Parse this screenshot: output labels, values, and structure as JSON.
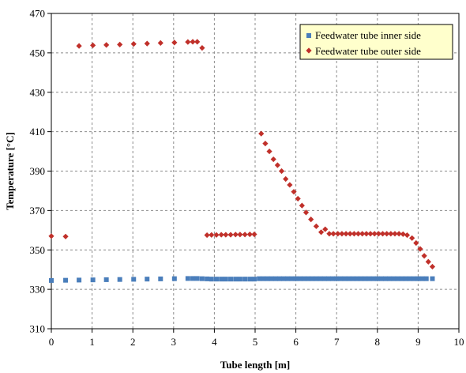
{
  "chart_data": {
    "type": "scatter",
    "xlabel": "Tube length [m]",
    "ylabel": "Temperature [°C]",
    "xlim": [
      0,
      10
    ],
    "ylim": [
      310,
      470
    ],
    "x_ticks": [
      "0",
      "1",
      "2",
      "3",
      "4",
      "5",
      "6",
      "7",
      "8",
      "9",
      "10"
    ],
    "y_ticks": [
      "310",
      "330",
      "350",
      "370",
      "390",
      "410",
      "430",
      "450",
      "470"
    ],
    "grid": "dashed",
    "legend_position": "top-right",
    "series": [
      {
        "name": "Feedwater tube inner side",
        "marker": "square",
        "color": "#4A7EBB",
        "points": [
          [
            0.0,
            334.5
          ],
          [
            0.35,
            334.6
          ],
          [
            0.68,
            334.7
          ],
          [
            1.02,
            334.8
          ],
          [
            1.35,
            334.9
          ],
          [
            1.68,
            335.0
          ],
          [
            2.02,
            335.1
          ],
          [
            2.35,
            335.2
          ],
          [
            2.68,
            335.3
          ],
          [
            3.02,
            335.4
          ],
          [
            3.35,
            335.5
          ],
          [
            3.47,
            335.5
          ],
          [
            3.58,
            335.5
          ],
          [
            3.7,
            335.4
          ],
          [
            3.82,
            335.3
          ],
          [
            3.93,
            335.2
          ],
          [
            4.05,
            335.2
          ],
          [
            4.17,
            335.2
          ],
          [
            4.28,
            335.2
          ],
          [
            4.4,
            335.2
          ],
          [
            4.52,
            335.2
          ],
          [
            4.63,
            335.2
          ],
          [
            4.75,
            335.2
          ],
          [
            4.87,
            335.2
          ],
          [
            4.98,
            335.2
          ],
          [
            5.1,
            335.4
          ],
          [
            5.2,
            335.4
          ],
          [
            5.3,
            335.4
          ],
          [
            5.4,
            335.4
          ],
          [
            5.5,
            335.4
          ],
          [
            5.6,
            335.4
          ],
          [
            5.7,
            335.4
          ],
          [
            5.8,
            335.4
          ],
          [
            5.9,
            335.4
          ],
          [
            6.0,
            335.4
          ],
          [
            6.1,
            335.4
          ],
          [
            6.2,
            335.4
          ],
          [
            6.3,
            335.4
          ],
          [
            6.4,
            335.4
          ],
          [
            6.5,
            335.4
          ],
          [
            6.6,
            335.4
          ],
          [
            6.7,
            335.4
          ],
          [
            6.8,
            335.4
          ],
          [
            6.9,
            335.4
          ],
          [
            7.0,
            335.4
          ],
          [
            7.1,
            335.4
          ],
          [
            7.2,
            335.4
          ],
          [
            7.3,
            335.4
          ],
          [
            7.4,
            335.4
          ],
          [
            7.5,
            335.4
          ],
          [
            7.6,
            335.4
          ],
          [
            7.7,
            335.4
          ],
          [
            7.8,
            335.4
          ],
          [
            7.9,
            335.4
          ],
          [
            8.0,
            335.4
          ],
          [
            8.1,
            335.4
          ],
          [
            8.2,
            335.4
          ],
          [
            8.3,
            335.4
          ],
          [
            8.4,
            335.4
          ],
          [
            8.5,
            335.4
          ],
          [
            8.6,
            335.4
          ],
          [
            8.7,
            335.4
          ],
          [
            8.8,
            335.4
          ],
          [
            8.9,
            335.4
          ],
          [
            9.0,
            335.4
          ],
          [
            9.1,
            335.4
          ],
          [
            9.2,
            335.4
          ],
          [
            9.35,
            335.4
          ]
        ]
      },
      {
        "name": "Feedwater tube outer side",
        "marker": "diamond",
        "color": "#C0302A",
        "points": [
          [
            0.0,
            357.0
          ],
          [
            0.35,
            356.8
          ],
          [
            0.68,
            453.5
          ],
          [
            1.02,
            453.8
          ],
          [
            1.35,
            454.0
          ],
          [
            1.68,
            454.2
          ],
          [
            2.02,
            454.5
          ],
          [
            2.35,
            454.7
          ],
          [
            2.68,
            455.0
          ],
          [
            3.02,
            455.2
          ],
          [
            3.35,
            455.5
          ],
          [
            3.47,
            455.6
          ],
          [
            3.58,
            455.6
          ],
          [
            3.7,
            452.5
          ],
          [
            3.82,
            357.5
          ],
          [
            3.93,
            357.6
          ],
          [
            4.05,
            357.6
          ],
          [
            4.17,
            357.7
          ],
          [
            4.28,
            357.7
          ],
          [
            4.4,
            357.7
          ],
          [
            4.52,
            357.8
          ],
          [
            4.63,
            357.8
          ],
          [
            4.75,
            357.8
          ],
          [
            4.87,
            357.9
          ],
          [
            4.98,
            357.9
          ],
          [
            5.15,
            409.0
          ],
          [
            5.25,
            404.0
          ],
          [
            5.35,
            400.0
          ],
          [
            5.45,
            396.0
          ],
          [
            5.55,
            393.0
          ],
          [
            5.65,
            390.0
          ],
          [
            5.75,
            386.0
          ],
          [
            5.85,
            383.0
          ],
          [
            5.95,
            379.5
          ],
          [
            6.05,
            376.0
          ],
          [
            6.15,
            372.5
          ],
          [
            6.25,
            369.0
          ],
          [
            6.37,
            365.5
          ],
          [
            6.5,
            362.0
          ],
          [
            6.62,
            359.0
          ],
          [
            6.72,
            360.5
          ],
          [
            6.82,
            358.2
          ],
          [
            6.92,
            358.2
          ],
          [
            7.03,
            358.2
          ],
          [
            7.13,
            358.2
          ],
          [
            7.23,
            358.2
          ],
          [
            7.33,
            358.2
          ],
          [
            7.43,
            358.2
          ],
          [
            7.53,
            358.2
          ],
          [
            7.63,
            358.2
          ],
          [
            7.73,
            358.2
          ],
          [
            7.83,
            358.2
          ],
          [
            7.93,
            358.2
          ],
          [
            8.03,
            358.2
          ],
          [
            8.13,
            358.2
          ],
          [
            8.23,
            358.2
          ],
          [
            8.33,
            358.2
          ],
          [
            8.43,
            358.2
          ],
          [
            8.53,
            358.2
          ],
          [
            8.63,
            358.0
          ],
          [
            8.73,
            357.5
          ],
          [
            8.85,
            356.0
          ],
          [
            8.95,
            353.5
          ],
          [
            9.05,
            350.5
          ],
          [
            9.15,
            347.0
          ],
          [
            9.25,
            344.0
          ],
          [
            9.35,
            341.5
          ]
        ]
      }
    ]
  }
}
